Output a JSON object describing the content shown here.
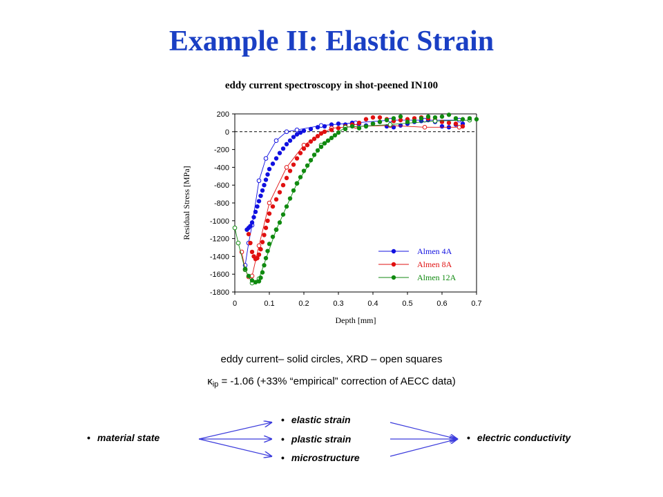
{
  "slide": {
    "title": "Example II: Elastic Strain"
  },
  "captions": {
    "line1": "eddy current– solid circles, XRD – open squares",
    "kappa_symbol": "κ",
    "kappa_sub": "ip",
    "kappa_rest": " = -1.06  (+33% “empirical” correction of AECC data)"
  },
  "flow": {
    "bullet": "•",
    "left": "material state",
    "middle": [
      "elastic strain",
      "plastic strain",
      "microstructure"
    ],
    "right": "electric conductivity",
    "arrow_color": "#3b3bdc"
  },
  "chart_data": {
    "type": "scatter",
    "title": "eddy current spectroscopy in shot-peened IN100",
    "xlabel": "Depth [mm]",
    "ylabel": "Residual Stress [MPa]",
    "xlim": [
      0,
      0.7
    ],
    "ylim": [
      -1800,
      200
    ],
    "xticks": [
      "0",
      "0.1",
      "0.2",
      "0.3",
      "0.4",
      "0.5",
      "0.6",
      "0.7"
    ],
    "yticks": [
      "200",
      "0",
      "-200",
      "-400",
      "-600",
      "-800",
      "-1000",
      "-1200",
      "-1400",
      "-1600",
      "-1800"
    ],
    "grid": false,
    "zero_line": "dashed",
    "legend_position": "bottom-right",
    "series": [
      {
        "name": "Almen 4A",
        "color": "#1010e0",
        "eddy_current": [
          [
            0.035,
            -1100
          ],
          [
            0.04,
            -1080
          ],
          [
            0.045,
            -1060
          ],
          [
            0.05,
            -1020
          ],
          [
            0.055,
            -960
          ],
          [
            0.06,
            -900
          ],
          [
            0.065,
            -840
          ],
          [
            0.07,
            -780
          ],
          [
            0.075,
            -720
          ],
          [
            0.08,
            -660
          ],
          [
            0.085,
            -600
          ],
          [
            0.09,
            -540
          ],
          [
            0.095,
            -480
          ],
          [
            0.1,
            -420
          ],
          [
            0.11,
            -360
          ],
          [
            0.12,
            -300
          ],
          [
            0.13,
            -240
          ],
          [
            0.14,
            -190
          ],
          [
            0.15,
            -140
          ],
          [
            0.16,
            -100
          ],
          [
            0.17,
            -60
          ],
          [
            0.18,
            -30
          ],
          [
            0.19,
            -10
          ],
          [
            0.2,
            10
          ],
          [
            0.22,
            30
          ],
          [
            0.24,
            50
          ],
          [
            0.26,
            60
          ],
          [
            0.28,
            80
          ],
          [
            0.3,
            90
          ],
          [
            0.32,
            80
          ],
          [
            0.34,
            100
          ],
          [
            0.36,
            90
          ],
          [
            0.38,
            70
          ],
          [
            0.4,
            90
          ],
          [
            0.42,
            110
          ],
          [
            0.44,
            60
          ],
          [
            0.46,
            50
          ],
          [
            0.48,
            70
          ],
          [
            0.5,
            90
          ],
          [
            0.52,
            110
          ],
          [
            0.54,
            120
          ],
          [
            0.56,
            130
          ],
          [
            0.58,
            110
          ],
          [
            0.6,
            60
          ],
          [
            0.62,
            50
          ],
          [
            0.64,
            80
          ],
          [
            0.66,
            90
          ]
        ],
        "xrd": [
          [
            0.03,
            -1500
          ],
          [
            0.04,
            -1250
          ],
          [
            0.05,
            -1050
          ],
          [
            0.07,
            -550
          ],
          [
            0.09,
            -300
          ],
          [
            0.12,
            -100
          ],
          [
            0.15,
            0
          ],
          [
            0.18,
            20
          ],
          [
            0.25,
            70
          ],
          [
            0.35,
            100
          ],
          [
            0.45,
            130
          ],
          [
            0.55,
            130
          ],
          [
            0.65,
            130
          ]
        ]
      },
      {
        "name": "Almen 8A",
        "color": "#e01010",
        "eddy_current": [
          [
            0.04,
            -1150
          ],
          [
            0.045,
            -1250
          ],
          [
            0.05,
            -1350
          ],
          [
            0.055,
            -1400
          ],
          [
            0.06,
            -1430
          ],
          [
            0.065,
            -1420
          ],
          [
            0.07,
            -1380
          ],
          [
            0.075,
            -1320
          ],
          [
            0.08,
            -1240
          ],
          [
            0.085,
            -1160
          ],
          [
            0.09,
            -1080
          ],
          [
            0.095,
            -1000
          ],
          [
            0.1,
            -920
          ],
          [
            0.11,
            -840
          ],
          [
            0.12,
            -760
          ],
          [
            0.13,
            -680
          ],
          [
            0.14,
            -600
          ],
          [
            0.15,
            -520
          ],
          [
            0.16,
            -440
          ],
          [
            0.17,
            -370
          ],
          [
            0.18,
            -300
          ],
          [
            0.19,
            -240
          ],
          [
            0.2,
            -190
          ],
          [
            0.21,
            -150
          ],
          [
            0.22,
            -110
          ],
          [
            0.23,
            -80
          ],
          [
            0.24,
            -50
          ],
          [
            0.25,
            -20
          ],
          [
            0.26,
            0
          ],
          [
            0.28,
            20
          ],
          [
            0.3,
            40
          ],
          [
            0.32,
            60
          ],
          [
            0.34,
            80
          ],
          [
            0.36,
            100
          ],
          [
            0.38,
            140
          ],
          [
            0.4,
            160
          ],
          [
            0.42,
            160
          ],
          [
            0.44,
            140
          ],
          [
            0.46,
            120
          ],
          [
            0.48,
            130
          ],
          [
            0.5,
            140
          ],
          [
            0.52,
            150
          ],
          [
            0.54,
            160
          ],
          [
            0.56,
            150
          ],
          [
            0.58,
            130
          ],
          [
            0.6,
            110
          ],
          [
            0.62,
            100
          ],
          [
            0.64,
            90
          ],
          [
            0.66,
            60
          ]
        ],
        "xrd": [
          [
            0.02,
            -1350
          ],
          [
            0.03,
            -1550
          ],
          [
            0.04,
            -1630
          ],
          [
            0.05,
            -1620
          ],
          [
            0.07,
            -1280
          ],
          [
            0.1,
            -800
          ],
          [
            0.15,
            -400
          ],
          [
            0.2,
            -150
          ],
          [
            0.28,
            40
          ],
          [
            0.35,
            60
          ],
          [
            0.45,
            70
          ],
          [
            0.55,
            50
          ],
          [
            0.65,
            50
          ]
        ]
      },
      {
        "name": "Almen 12A",
        "color": "#108a10",
        "eddy_current": [
          [
            0.03,
            -1540
          ],
          [
            0.04,
            -1620
          ],
          [
            0.05,
            -1670
          ],
          [
            0.06,
            -1690
          ],
          [
            0.07,
            -1680
          ],
          [
            0.075,
            -1640
          ],
          [
            0.08,
            -1580
          ],
          [
            0.085,
            -1500
          ],
          [
            0.09,
            -1420
          ],
          [
            0.095,
            -1340
          ],
          [
            0.1,
            -1260
          ],
          [
            0.11,
            -1180
          ],
          [
            0.12,
            -1100
          ],
          [
            0.13,
            -1020
          ],
          [
            0.14,
            -930
          ],
          [
            0.15,
            -840
          ],
          [
            0.16,
            -750
          ],
          [
            0.17,
            -660
          ],
          [
            0.18,
            -580
          ],
          [
            0.19,
            -510
          ],
          [
            0.2,
            -440
          ],
          [
            0.21,
            -380
          ],
          [
            0.22,
            -320
          ],
          [
            0.23,
            -260
          ],
          [
            0.24,
            -210
          ],
          [
            0.25,
            -170
          ],
          [
            0.26,
            -130
          ],
          [
            0.27,
            -100
          ],
          [
            0.28,
            -70
          ],
          [
            0.29,
            -40
          ],
          [
            0.3,
            -10
          ],
          [
            0.32,
            30
          ],
          [
            0.34,
            60
          ],
          [
            0.36,
            40
          ],
          [
            0.38,
            60
          ],
          [
            0.4,
            90
          ],
          [
            0.42,
            110
          ],
          [
            0.44,
            130
          ],
          [
            0.46,
            150
          ],
          [
            0.48,
            170
          ],
          [
            0.5,
            110
          ],
          [
            0.52,
            120
          ],
          [
            0.54,
            150
          ],
          [
            0.56,
            170
          ],
          [
            0.58,
            160
          ],
          [
            0.6,
            170
          ],
          [
            0.62,
            190
          ],
          [
            0.64,
            150
          ],
          [
            0.66,
            140
          ],
          [
            0.68,
            150
          ],
          [
            0.7,
            140
          ]
        ],
        "xrd": [
          [
            0.0,
            -1080
          ],
          [
            0.01,
            -1250
          ],
          [
            0.03,
            -1550
          ],
          [
            0.05,
            -1700
          ],
          [
            0.07,
            -1650
          ],
          [
            0.12,
            -1100
          ],
          [
            0.18,
            -580
          ],
          [
            0.25,
            -150
          ],
          [
            0.32,
            50
          ],
          [
            0.45,
            80
          ],
          [
            0.58,
            120
          ],
          [
            0.68,
            130
          ]
        ]
      }
    ]
  }
}
